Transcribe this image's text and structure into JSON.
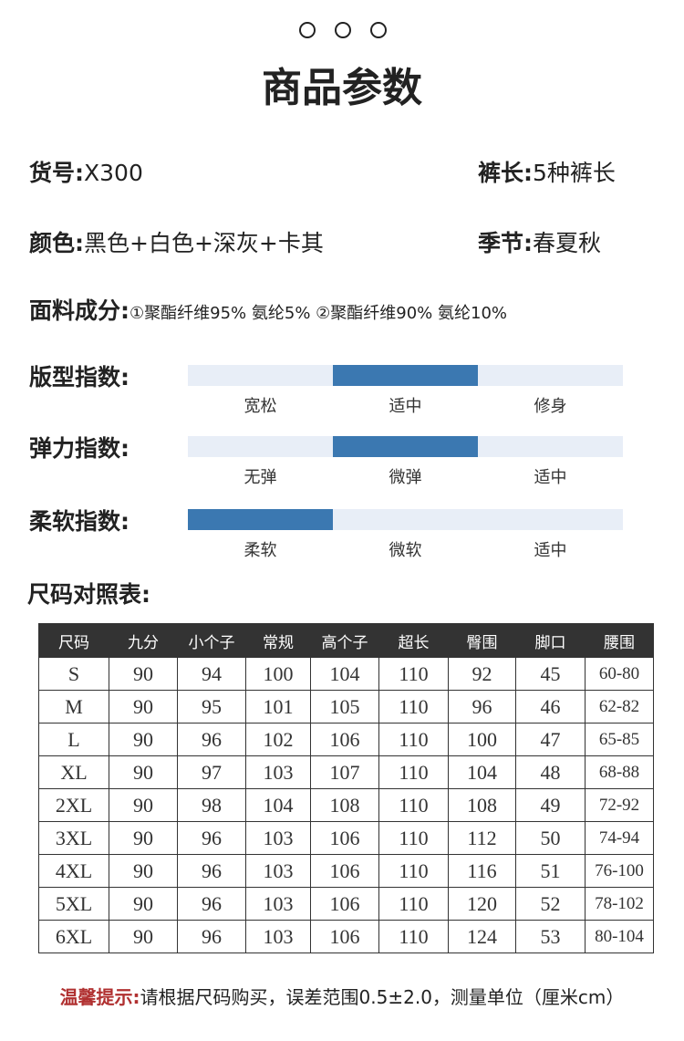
{
  "header": {
    "title": "商品参数"
  },
  "specs": [
    {
      "label": "货号:",
      "value": "X300"
    },
    {
      "label": "裤长:",
      "value": "5种裤长"
    },
    {
      "label": "颜色:",
      "value": "黑色+白色+深灰+卡其"
    },
    {
      "label": "季节:",
      "value": "春夏秋"
    }
  ],
  "fabric": {
    "label": "面料成分:",
    "value": "①聚酯纤维95% 氨纶5% ②聚酯纤维90% 氨纶10%"
  },
  "indices": [
    {
      "label": "版型指数:",
      "options": [
        "宽松",
        "适中",
        "修身"
      ],
      "selected": 1
    },
    {
      "label": "弹力指数:",
      "options": [
        "无弹",
        "微弹",
        "适中"
      ],
      "selected": 1
    },
    {
      "label": "柔软指数:",
      "options": [
        "柔软",
        "微软",
        "适中"
      ],
      "selected": 0
    }
  ],
  "size_table": {
    "title": "尺码对照表:",
    "columns": [
      "尺码",
      "九分",
      "小个子",
      "常规",
      "高个子",
      "超长",
      "臀围",
      "脚口",
      "腰围"
    ],
    "rows": [
      [
        "S",
        90,
        94,
        100,
        104,
        110,
        92,
        45,
        "60-80"
      ],
      [
        "M",
        90,
        95,
        101,
        105,
        110,
        96,
        46,
        "62-82"
      ],
      [
        "L",
        90,
        96,
        102,
        106,
        110,
        100,
        47,
        "65-85"
      ],
      [
        "XL",
        90,
        97,
        103,
        107,
        110,
        104,
        48,
        "68-88"
      ],
      [
        "2XL",
        90,
        98,
        104,
        108,
        110,
        108,
        49,
        "72-92"
      ],
      [
        "3XL",
        90,
        96,
        103,
        106,
        110,
        112,
        50,
        "74-94"
      ],
      [
        "4XL",
        90,
        96,
        103,
        106,
        110,
        116,
        51,
        "76-100"
      ],
      [
        "5XL",
        90,
        96,
        103,
        106,
        110,
        120,
        52,
        "78-102"
      ],
      [
        "6XL",
        90,
        96,
        103,
        106,
        110,
        124,
        53,
        "80-104"
      ]
    ]
  },
  "note": {
    "label": "温馨提示:",
    "text": "请根据尺码购买，误差范围0.5±2.0，测量单位（厘米cm）"
  }
}
